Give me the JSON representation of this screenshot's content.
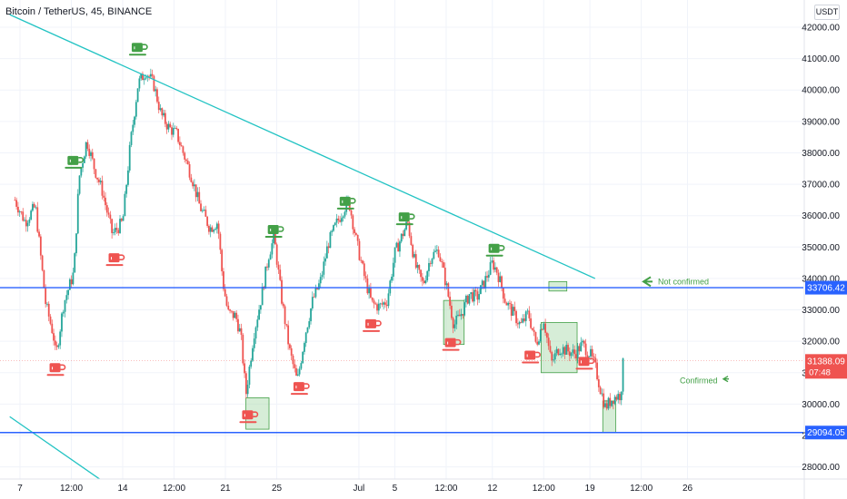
{
  "header": {
    "title": "Bitcoin / TetherUS, 45, BINANCE",
    "currency": "USDT"
  },
  "colors": {
    "up": "#26a69a",
    "down": "#ef5350",
    "trendline": "#22c3c3",
    "hline": "#2962ff",
    "box_fill": "#a5d6a7",
    "box_stroke": "#43a047",
    "annotation": "#43a047",
    "last_price": "#ef5350"
  },
  "annotations": {
    "not_confirmed": "Not confirmed",
    "confirmed": "Confirmed",
    "arrow_icon": "arrow-left-icon"
  },
  "chart_data": {
    "type": "candlestick",
    "symbol": "BTCUSDT",
    "interval": "45",
    "exchange": "BINANCE",
    "ylim": [
      27500,
      42700
    ],
    "y_ticks": [
      28000,
      29000,
      30000,
      31000,
      32000,
      33000,
      34000,
      35000,
      36000,
      37000,
      38000,
      39000,
      40000,
      41000,
      42000
    ],
    "y_tick_labels": [
      "28000.00",
      "29000.00",
      "30000.00",
      "31000.00",
      "32000.00",
      "33000.00",
      "34000.00",
      "35000.00",
      "36000.00",
      "37000.00",
      "38000.00",
      "39000.00",
      "40000.00",
      "41000.00",
      "42000.00"
    ],
    "x_ticks": [
      {
        "label": "7",
        "day": 0
      },
      {
        "label": "12:00",
        "day": 1.0
      },
      {
        "label": "14",
        "day": 2
      },
      {
        "label": "12:00",
        "day": 3.0
      },
      {
        "label": "21",
        "day": 4
      },
      {
        "label": "25",
        "day": 5
      },
      {
        "label": "Jul",
        "day": 6.6
      },
      {
        "label": "5",
        "day": 7.3
      },
      {
        "label": "12:00",
        "day": 8.3
      },
      {
        "label": "12",
        "day": 9.2
      },
      {
        "label": "12:00",
        "day": 10.2
      },
      {
        "label": "19",
        "day": 11.1
      },
      {
        "label": "12:00",
        "day": 12.1
      },
      {
        "label": "26",
        "day": 13.0
      }
    ],
    "price_path": [
      [
        -0.1,
        36500
      ],
      [
        0.1,
        35800
      ],
      [
        0.3,
        36300
      ],
      [
        0.5,
        33200
      ],
      [
        0.65,
        32200
      ],
      [
        0.7,
        31500
      ],
      [
        0.85,
        33200
      ],
      [
        1.05,
        34200
      ],
      [
        1.15,
        37200
      ],
      [
        1.3,
        38400
      ],
      [
        1.45,
        37500
      ],
      [
        1.6,
        36800
      ],
      [
        1.8,
        35400
      ],
      [
        2.0,
        35800
      ],
      [
        2.15,
        38300
      ],
      [
        2.3,
        40200
      ],
      [
        2.45,
        40600
      ],
      [
        2.6,
        40200
      ],
      [
        2.75,
        39200
      ],
      [
        2.9,
        38800
      ],
      [
        3.05,
        38600
      ],
      [
        3.2,
        37900
      ],
      [
        3.35,
        37200
      ],
      [
        3.5,
        36300
      ],
      [
        3.7,
        35600
      ],
      [
        3.85,
        35800
      ],
      [
        3.95,
        33900
      ],
      [
        4.05,
        32900
      ],
      [
        4.2,
        32800
      ],
      [
        4.3,
        32200
      ],
      [
        4.4,
        30300
      ],
      [
        4.55,
        32200
      ],
      [
        4.7,
        33400
      ],
      [
        4.85,
        34800
      ],
      [
        4.95,
        35300
      ],
      [
        5.1,
        33300
      ],
      [
        5.25,
        31700
      ],
      [
        5.4,
        30700
      ],
      [
        5.55,
        32200
      ],
      [
        5.7,
        33300
      ],
      [
        5.85,
        33900
      ],
      [
        6.0,
        35100
      ],
      [
        6.15,
        35700
      ],
      [
        6.3,
        36200
      ],
      [
        6.4,
        36500
      ],
      [
        6.55,
        35200
      ],
      [
        6.7,
        34100
      ],
      [
        6.85,
        33200
      ],
      [
        7.0,
        33100
      ],
      [
        7.15,
        33300
      ],
      [
        7.3,
        34800
      ],
      [
        7.45,
        35400
      ],
      [
        7.55,
        35800
      ],
      [
        7.7,
        34400
      ],
      [
        7.85,
        33800
      ],
      [
        8.0,
        34700
      ],
      [
        8.15,
        34900
      ],
      [
        8.3,
        33800
      ],
      [
        8.45,
        32500
      ],
      [
        8.6,
        32900
      ],
      [
        8.75,
        33500
      ],
      [
        8.9,
        33400
      ],
      [
        9.05,
        33900
      ],
      [
        9.2,
        34500
      ],
      [
        9.3,
        34200
      ],
      [
        9.45,
        33300
      ],
      [
        9.6,
        32900
      ],
      [
        9.75,
        32500
      ],
      [
        9.9,
        32900
      ],
      [
        10.05,
        31900
      ],
      [
        10.2,
        32700
      ],
      [
        10.35,
        31300
      ],
      [
        10.5,
        31800
      ],
      [
        10.65,
        31700
      ],
      [
        10.8,
        31600
      ],
      [
        10.95,
        31900
      ],
      [
        11.1,
        31600
      ],
      [
        11.2,
        31200
      ],
      [
        11.3,
        30500
      ],
      [
        11.4,
        29900
      ],
      [
        11.55,
        30200
      ],
      [
        11.7,
        30300
      ],
      [
        11.75,
        31388
      ]
    ],
    "trendlines": [
      {
        "from": [
          -0.2,
          42400
        ],
        "to": [
          11.2,
          34000
        ]
      },
      {
        "from": [
          -0.2,
          29600
        ],
        "to": [
          1.65,
          27500
        ]
      }
    ],
    "horizontal_levels": [
      {
        "price": 33706.42,
        "label": "33706.42"
      },
      {
        "price": 29094.05,
        "label": "29094.05"
      }
    ],
    "last_price": {
      "price": 31388.09,
      "label": "31388.09",
      "countdown": "07:48"
    },
    "zones": [
      {
        "day0": 4.4,
        "day1": 4.85,
        "p0": 30200,
        "p1": 29200
      },
      {
        "day0": 8.25,
        "day1": 8.65,
        "p0": 33300,
        "p1": 31900
      },
      {
        "day0": 10.15,
        "day1": 10.85,
        "p0": 32600,
        "p1": 31000
      },
      {
        "day0": 11.35,
        "day1": 11.6,
        "p0": 30100,
        "p1": 29100
      },
      {
        "day0": 10.3,
        "day1": 10.65,
        "p0": 33900,
        "p1": 33600
      }
    ],
    "markers": [
      {
        "day": 0.7,
        "price": 31100,
        "kind": "down"
      },
      {
        "day": 1.05,
        "price": 37700,
        "kind": "up"
      },
      {
        "day": 1.85,
        "price": 34600,
        "kind": "down"
      },
      {
        "day": 2.3,
        "price": 41300,
        "kind": "up"
      },
      {
        "day": 4.45,
        "price": 29600,
        "kind": "down"
      },
      {
        "day": 4.95,
        "price": 35500,
        "kind": "up"
      },
      {
        "day": 5.45,
        "price": 30500,
        "kind": "down"
      },
      {
        "day": 6.35,
        "price": 36400,
        "kind": "up"
      },
      {
        "day": 6.85,
        "price": 32500,
        "kind": "down"
      },
      {
        "day": 7.5,
        "price": 35900,
        "kind": "up"
      },
      {
        "day": 8.4,
        "price": 31900,
        "kind": "down"
      },
      {
        "day": 9.25,
        "price": 34900,
        "kind": "up"
      },
      {
        "day": 9.95,
        "price": 31500,
        "kind": "down"
      },
      {
        "day": 11.0,
        "price": 31300,
        "kind": "down"
      }
    ]
  }
}
